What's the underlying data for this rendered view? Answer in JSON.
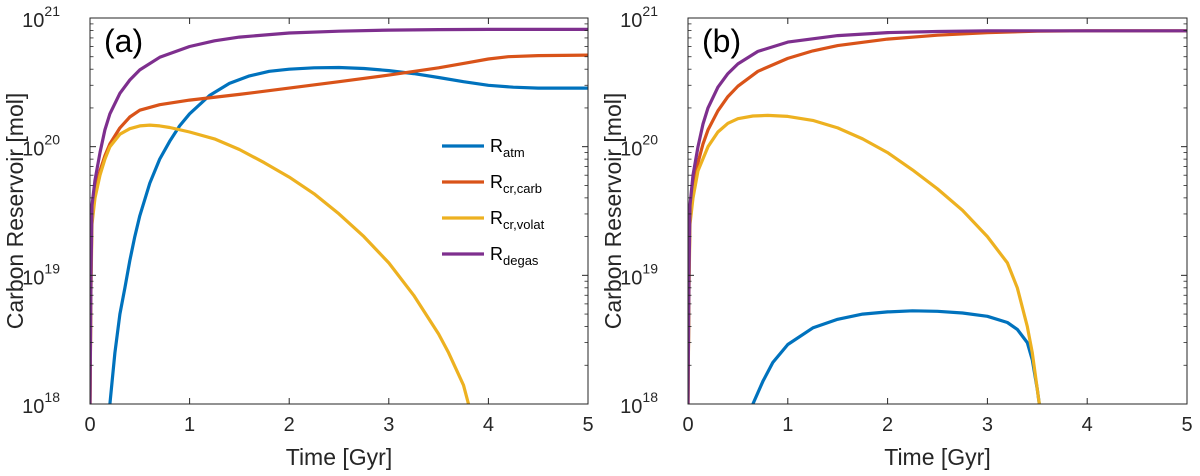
{
  "chart_data": [
    {
      "type": "line",
      "panel_label": "(a)",
      "xlabel": "Time [Gyr]",
      "ylabel": "Carbon Reservoir [mol]",
      "xlim": [
        0,
        5
      ],
      "ylim": [
        1e+18,
        1e+21
      ],
      "yscale": "log",
      "xticks": [
        0,
        1,
        2,
        3,
        4,
        5
      ],
      "yticks": [
        {
          "base": "10",
          "exp": "18",
          "value": 1e+18
        },
        {
          "base": "10",
          "exp": "19",
          "value": 1e+19
        },
        {
          "base": "10",
          "exp": "20",
          "value": 1e+20
        },
        {
          "base": "10",
          "exp": "21",
          "value": 1e+21
        }
      ],
      "legend": {
        "position": "center-right",
        "entries": [
          {
            "base": "R",
            "sub": "atm",
            "color": "#0072BD"
          },
          {
            "base": "R",
            "sub": "cr,carb",
            "color": "#D95319"
          },
          {
            "base": "R",
            "sub": "cr,volat",
            "color": "#EDB120"
          },
          {
            "base": "R",
            "sub": "degas",
            "color": "#7E2F8E"
          }
        ]
      },
      "series": [
        {
          "name": "R_atm",
          "color": "#0072BD",
          "points": [
            [
              0.2,
              1e+18
            ],
            [
              0.25,
              2.5e+18
            ],
            [
              0.3,
              5e+18
            ],
            [
              0.35,
              8e+18
            ],
            [
              0.4,
              1.3e+19
            ],
            [
              0.45,
              2e+19
            ],
            [
              0.5,
              2.9e+19
            ],
            [
              0.6,
              5.2e+19
            ],
            [
              0.7,
              8e+19
            ],
            [
              0.8,
              1.1e+20
            ],
            [
              0.9,
              1.45e+20
            ],
            [
              1.0,
              1.8e+20
            ],
            [
              1.2,
              2.5e+20
            ],
            [
              1.4,
              3.1e+20
            ],
            [
              1.6,
              3.55e+20
            ],
            [
              1.8,
              3.85e+20
            ],
            [
              2.0,
              4e+20
            ],
            [
              2.25,
              4.1e+20
            ],
            [
              2.5,
              4.12e+20
            ],
            [
              2.75,
              4.05e+20
            ],
            [
              3.0,
              3.9e+20
            ],
            [
              3.25,
              3.7e+20
            ],
            [
              3.5,
              3.45e+20
            ],
            [
              3.75,
              3.2e+20
            ],
            [
              4.0,
              3e+20
            ],
            [
              4.25,
              2.9e+20
            ],
            [
              4.5,
              2.85e+20
            ],
            [
              5.0,
              2.85e+20
            ]
          ]
        },
        {
          "name": "R_cr,carb",
          "color": "#D95319",
          "points": [
            [
              0.0,
              1e+18
            ],
            [
              0.01,
              1e+19
            ],
            [
              0.02,
              3e+19
            ],
            [
              0.05,
              4.5e+19
            ],
            [
              0.1,
              6.5e+19
            ],
            [
              0.15,
              8.5e+19
            ],
            [
              0.2,
              1.05e+20
            ],
            [
              0.3,
              1.4e+20
            ],
            [
              0.4,
              1.7e+20
            ],
            [
              0.5,
              1.92e+20
            ],
            [
              0.7,
              2.12e+20
            ],
            [
              1.0,
              2.3e+20
            ],
            [
              1.5,
              2.55e+20
            ],
            [
              2.0,
              2.85e+20
            ],
            [
              2.5,
              3.2e+20
            ],
            [
              3.0,
              3.6e+20
            ],
            [
              3.5,
              4.1e+20
            ],
            [
              3.8,
              4.5e+20
            ],
            [
              4.0,
              4.8e+20
            ],
            [
              4.2,
              5e+20
            ],
            [
              4.5,
              5.1e+20
            ],
            [
              5.0,
              5.15e+20
            ]
          ]
        },
        {
          "name": "R_cr,volat",
          "color": "#EDB120",
          "points": [
            [
              0.0,
              1e+18
            ],
            [
              0.01,
              8e+18
            ],
            [
              0.02,
              2.5e+19
            ],
            [
              0.05,
              4e+19
            ],
            [
              0.1,
              6e+19
            ],
            [
              0.15,
              8e+19
            ],
            [
              0.2,
              1e+20
            ],
            [
              0.3,
              1.25e+20
            ],
            [
              0.4,
              1.38e+20
            ],
            [
              0.5,
              1.45e+20
            ],
            [
              0.6,
              1.47e+20
            ],
            [
              0.7,
              1.45e+20
            ],
            [
              0.8,
              1.41e+20
            ],
            [
              1.0,
              1.3e+20
            ],
            [
              1.25,
              1.15e+20
            ],
            [
              1.5,
              9.5e+19
            ],
            [
              1.75,
              7.5e+19
            ],
            [
              2.0,
              5.8e+19
            ],
            [
              2.25,
              4.3e+19
            ],
            [
              2.5,
              3e+19
            ],
            [
              2.75,
              2e+19
            ],
            [
              3.0,
              1.25e+19
            ],
            [
              3.25,
              7e+18
            ],
            [
              3.5,
              3.5e+18
            ],
            [
              3.6,
              2.5e+18
            ],
            [
              3.7,
              1.7e+18
            ],
            [
              3.75,
              1.4e+18
            ],
            [
              3.8,
              1e+18
            ]
          ]
        },
        {
          "name": "R_degas",
          "color": "#7E2F8E",
          "points": [
            [
              0.0,
              1e+18
            ],
            [
              0.01,
              1e+19
            ],
            [
              0.02,
              3.5e+19
            ],
            [
              0.05,
              5.5e+19
            ],
            [
              0.1,
              9e+19
            ],
            [
              0.15,
              1.35e+20
            ],
            [
              0.2,
              1.8e+20
            ],
            [
              0.3,
              2.6e+20
            ],
            [
              0.4,
              3.3e+20
            ],
            [
              0.5,
              3.95e+20
            ],
            [
              0.7,
              4.95e+20
            ],
            [
              1.0,
              6e+20
            ],
            [
              1.25,
              6.65e+20
            ],
            [
              1.5,
              7.1e+20
            ],
            [
              2.0,
              7.65e+20
            ],
            [
              2.5,
              7.9e+20
            ],
            [
              3.0,
              8.05e+20
            ],
            [
              3.5,
              8.12e+20
            ],
            [
              4.0,
              8.15e+20
            ],
            [
              5.0,
              8.15e+20
            ]
          ]
        }
      ]
    },
    {
      "type": "line",
      "panel_label": "(b)",
      "xlabel": "Time [Gyr]",
      "ylabel": "Carbon Reservoir [mol]",
      "xlim": [
        0,
        5
      ],
      "ylim": [
        1e+18,
        1e+21
      ],
      "yscale": "log",
      "xticks": [
        0,
        1,
        2,
        3,
        4,
        5
      ],
      "yticks": [
        {
          "base": "10",
          "exp": "18",
          "value": 1e+18
        },
        {
          "base": "10",
          "exp": "19",
          "value": 1e+19
        },
        {
          "base": "10",
          "exp": "20",
          "value": 1e+20
        },
        {
          "base": "10",
          "exp": "21",
          "value": 1e+21
        }
      ],
      "series": [
        {
          "name": "R_atm",
          "color": "#0072BD",
          "points": [
            [
              0.65,
              1e+18
            ],
            [
              0.75,
              1.5e+18
            ],
            [
              0.85,
              2.1e+18
            ],
            [
              1.0,
              2.9e+18
            ],
            [
              1.25,
              3.9e+18
            ],
            [
              1.5,
              4.55e+18
            ],
            [
              1.75,
              5e+18
            ],
            [
              2.0,
              5.2e+18
            ],
            [
              2.25,
              5.3e+18
            ],
            [
              2.5,
              5.25e+18
            ],
            [
              2.75,
              5.1e+18
            ],
            [
              3.0,
              4.8e+18
            ],
            [
              3.2,
              4.3e+18
            ],
            [
              3.3,
              3.8e+18
            ],
            [
              3.4,
              3e+18
            ],
            [
              3.45,
              2.2e+18
            ],
            [
              3.5,
              1.3e+18
            ],
            [
              3.52,
              1e+18
            ]
          ]
        },
        {
          "name": "R_cr,carb",
          "color": "#D95319",
          "points": [
            [
              0.0,
              1e+18
            ],
            [
              0.01,
              1e+19
            ],
            [
              0.02,
              3e+19
            ],
            [
              0.05,
              5e+19
            ],
            [
              0.1,
              7.5e+19
            ],
            [
              0.15,
              1.05e+20
            ],
            [
              0.2,
              1.35e+20
            ],
            [
              0.3,
              1.9e+20
            ],
            [
              0.4,
              2.45e+20
            ],
            [
              0.5,
              2.95e+20
            ],
            [
              0.7,
              3.85e+20
            ],
            [
              1.0,
              4.85e+20
            ],
            [
              1.25,
              5.55e+20
            ],
            [
              1.5,
              6.1e+20
            ],
            [
              2.0,
              6.85e+20
            ],
            [
              2.5,
              7.35e+20
            ],
            [
              3.0,
              7.7e+20
            ],
            [
              3.5,
              7.9e+20
            ],
            [
              4.0,
              7.95e+20
            ],
            [
              5.0,
              7.95e+20
            ]
          ]
        },
        {
          "name": "R_cr,volat",
          "color": "#EDB120",
          "points": [
            [
              0.0,
              1e+18
            ],
            [
              0.01,
              8e+18
            ],
            [
              0.02,
              2.5e+19
            ],
            [
              0.05,
              4e+19
            ],
            [
              0.1,
              6.5e+19
            ],
            [
              0.2,
              1e+20
            ],
            [
              0.3,
              1.3e+20
            ],
            [
              0.4,
              1.52e+20
            ],
            [
              0.5,
              1.65e+20
            ],
            [
              0.65,
              1.73e+20
            ],
            [
              0.8,
              1.75e+20
            ],
            [
              1.0,
              1.72e+20
            ],
            [
              1.25,
              1.6e+20
            ],
            [
              1.5,
              1.4e+20
            ],
            [
              1.75,
              1.15e+20
            ],
            [
              2.0,
              9e+19
            ],
            [
              2.25,
              6.6e+19
            ],
            [
              2.5,
              4.7e+19
            ],
            [
              2.75,
              3.2e+19
            ],
            [
              3.0,
              2e+19
            ],
            [
              3.2,
              1.25e+19
            ],
            [
              3.3,
              8e+18
            ],
            [
              3.4,
              4e+18
            ],
            [
              3.45,
              2.5e+18
            ],
            [
              3.5,
              1.3e+18
            ],
            [
              3.52,
              1e+18
            ]
          ]
        },
        {
          "name": "R_degas",
          "color": "#7E2F8E",
          "points": [
            [
              0.0,
              1e+18
            ],
            [
              0.01,
              1e+19
            ],
            [
              0.02,
              3.5e+19
            ],
            [
              0.05,
              6e+19
            ],
            [
              0.1,
              1e+20
            ],
            [
              0.15,
              1.5e+20
            ],
            [
              0.2,
              2e+20
            ],
            [
              0.3,
              2.9e+20
            ],
            [
              0.4,
              3.7e+20
            ],
            [
              0.5,
              4.4e+20
            ],
            [
              0.7,
              5.5e+20
            ],
            [
              1.0,
              6.5e+20
            ],
            [
              1.5,
              7.3e+20
            ],
            [
              2.0,
              7.7e+20
            ],
            [
              2.5,
              7.85e+20
            ],
            [
              3.0,
              7.95e+20
            ],
            [
              3.5,
              7.95e+20
            ],
            [
              5.0,
              7.95e+20
            ]
          ]
        }
      ]
    }
  ]
}
